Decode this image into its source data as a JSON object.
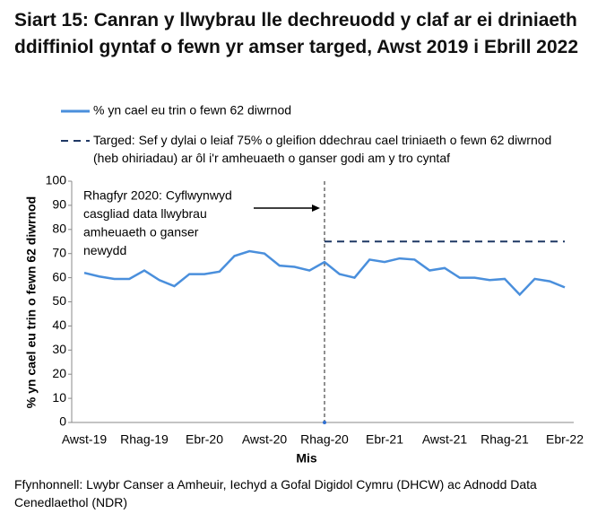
{
  "chart_data": {
    "type": "line",
    "title": "Siart 15: Canran y llwybrau lle dechreuodd y claf ar ei driniaeth ddiffiniol gyntaf o fewn yr amser targed, Awst 2019 i Ebrill 2022",
    "x_label": "Mis",
    "y_label": "% yn cael eu trin o fewn 62 diwrnod",
    "categories": [
      "Awst-19",
      null,
      null,
      null,
      "Rhag-19",
      null,
      null,
      null,
      "Ebr-20",
      null,
      null,
      null,
      "Awst-20",
      null,
      null,
      null,
      "Rhag-20",
      null,
      null,
      null,
      "Ebr-21",
      null,
      null,
      null,
      "Awst-21",
      null,
      null,
      null,
      "Rhag-21",
      null,
      null,
      null,
      "Ebr-22"
    ],
    "series": [
      {
        "name": "% yn cael eu trin o fewn 62 diwrnod",
        "color": "#4a8fdc",
        "values": [
          62,
          60.5,
          59.5,
          59.5,
          63,
          59,
          56.5,
          61.5,
          61.5,
          62.5,
          69,
          71,
          70,
          65,
          64.5,
          63,
          66.5,
          61.5,
          60,
          67.5,
          66.5,
          68,
          67.5,
          63,
          64,
          60,
          60,
          59,
          59.5,
          53,
          59.5,
          58.5,
          56
        ]
      },
      {
        "name": "Targed: Sef y dylai o leiaf 75% o gleifion ddechrau cael triniaeth o fewn 62 diwrnod (heb ohiriadau) ar ôl i'r amheuaeth o ganser godi am y tro cyntaf",
        "color": "#1f3864",
        "dashed": true,
        "values": [
          null,
          null,
          null,
          null,
          null,
          null,
          null,
          null,
          null,
          null,
          null,
          null,
          null,
          null,
          null,
          null,
          75,
          75,
          75,
          75,
          75,
          75,
          75,
          75,
          75,
          75,
          75,
          75,
          75,
          75,
          75,
          75,
          75
        ]
      }
    ],
    "annotation": [
      "Rhagfyr 2020: Cyflwynwyd",
      "casgliad data llwybrau",
      "amheuaeth o ganser",
      "newydd"
    ],
    "ylim": [
      0,
      100
    ],
    "yticks": [
      0,
      10,
      20,
      30,
      40,
      50,
      60,
      70,
      80,
      90,
      100
    ],
    "source": "Ffynhonnell: Lwybr Canser a Amheuir, Iechyd a Gofal Digidol Cymru (DHCW) ac Adnodd Data Cenedlaethol (NDR)"
  }
}
